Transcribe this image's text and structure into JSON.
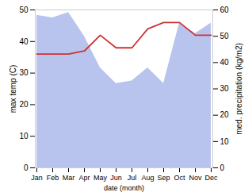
{
  "chart_data": {
    "type": "line",
    "categories": [
      "Jan",
      "Feb",
      "Mar",
      "Apr",
      "May",
      "Jun",
      "Jul",
      "Aug",
      "Sep",
      "Oct",
      "Nov",
      "Dec"
    ],
    "xlabel": "date (month)",
    "ylabel": "max temp (C)",
    "y2label": "med. precipitation (kg/m2)",
    "ylim": [
      0,
      50
    ],
    "yticks": [
      0,
      10,
      20,
      30,
      40,
      50
    ],
    "y2lim": [
      0,
      60
    ],
    "y2ticks": [
      0,
      10,
      20,
      30,
      40,
      50,
      60
    ],
    "series": [
      {
        "type": "area",
        "axis": "y2",
        "color": "#b8c4ee",
        "values": [
          58,
          57,
          59,
          50,
          38,
          32,
          33,
          38,
          32,
          55,
          51,
          55
        ]
      },
      {
        "type": "line",
        "color": "#cc3333",
        "values": [
          36,
          36,
          36,
          37,
          42,
          38,
          38,
          44,
          46,
          46,
          42,
          42
        ]
      }
    ]
  }
}
